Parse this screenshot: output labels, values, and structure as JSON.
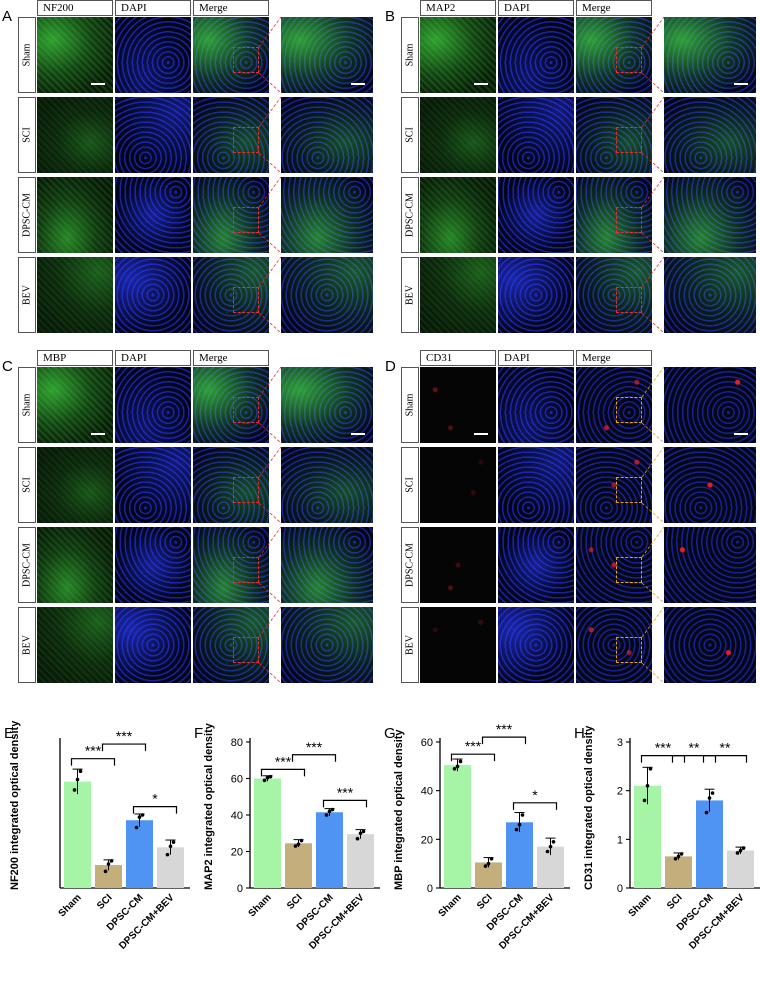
{
  "panels": [
    {
      "letter": "A",
      "channels": [
        "NF200",
        "DAPI",
        "Merge"
      ],
      "rows": [
        "Sham",
        "SCI",
        "DPSC-CM",
        "BEV"
      ],
      "stain": "green"
    },
    {
      "letter": "B",
      "channels": [
        "MAP2",
        "DAPI",
        "Merge"
      ],
      "rows": [
        "Sham",
        "SCI",
        "DPSC-CM",
        "BEV"
      ],
      "stain": "green"
    },
    {
      "letter": "C",
      "channels": [
        "MBP",
        "DAPI",
        "Merge"
      ],
      "rows": [
        "Sham",
        "SCI",
        "DPSC-CM",
        "BEV"
      ],
      "stain": "green"
    },
    {
      "letter": "D",
      "channels": [
        "CD31",
        "DAPI",
        "Merge"
      ],
      "rows": [
        "Sham",
        "SCI",
        "DPSC-CM",
        "BEV"
      ],
      "stain": "red"
    }
  ],
  "colors": {
    "sham": "#a6f5a6",
    "sci": "#c4ae7b",
    "dpsc_cm": "#4f94f3",
    "dpsc_cm_bev": "#d7d7d7",
    "green_stain": "#3fd13f",
    "red_stain": "#ff2020",
    "dapi": "#2a3cff",
    "box_red": "#e03030",
    "box_yellow": "#e0a020"
  },
  "chart_data": [
    {
      "letter": "E",
      "type": "bar",
      "categories": [
        "Sham",
        "SCI",
        "DPSC-CM",
        "DPSC-CM+BEV"
      ],
      "values": [
        51,
        11,
        32.5,
        19.5
      ],
      "errors": [
        6,
        2.5,
        3,
        3.5
      ],
      "points": [
        [
          47,
          52,
          56
        ],
        [
          8,
          11.5,
          13
        ],
        [
          29,
          34,
          35
        ],
        [
          16,
          20,
          22
        ]
      ],
      "ylabel": "NF200  integrated optical density",
      "ylim": [
        0,
        70
      ],
      "yticks": [],
      "axis_visible": true,
      "sig": [
        {
          "from": 0,
          "to": 1,
          "label": "***",
          "level": 62
        },
        {
          "from": 1,
          "to": 2,
          "label": "***",
          "level": 69
        },
        {
          "from": 2,
          "to": 3,
          "label": "*",
          "level": 39
        }
      ]
    },
    {
      "letter": "F",
      "type": "bar",
      "categories": [
        "Sham",
        "SCI",
        "DPSC-CM",
        "DPSC-CM+BEV"
      ],
      "values": [
        60,
        24.5,
        41.5,
        29.5
      ],
      "errors": [
        1.5,
        2,
        2,
        2.5
      ],
      "points": [
        [
          59,
          60.5,
          61
        ],
        [
          23,
          24,
          26
        ],
        [
          40,
          42,
          43
        ],
        [
          27,
          30,
          31
        ]
      ],
      "ylabel": "MAP2 integrated optical density",
      "ylim": [
        0,
        80
      ],
      "yticks": [
        0,
        20,
        40,
        60,
        80
      ],
      "axis_visible": true,
      "sig": [
        {
          "from": 0,
          "to": 1,
          "label": "***",
          "level": 65
        },
        {
          "from": 1,
          "to": 2,
          "label": "***",
          "level": 73
        },
        {
          "from": 2,
          "to": 3,
          "label": "***",
          "level": 48
        }
      ]
    },
    {
      "letter": "G",
      "type": "bar",
      "categories": [
        "Sham",
        "SCI",
        "DPSC-CM",
        "DPSC-CM+BEV"
      ],
      "values": [
        50.5,
        10.5,
        27,
        17
      ],
      "errors": [
        2.5,
        2,
        4,
        3.5
      ],
      "points": [
        [
          49,
          50,
          52
        ],
        [
          9,
          10,
          12
        ],
        [
          24,
          26,
          30
        ],
        [
          15,
          17,
          19
        ]
      ],
      "ylabel": "MBP integrated optical density",
      "ylim": [
        0,
        60
      ],
      "yticks": [
        0,
        20,
        40,
        60
      ],
      "axis_visible": true,
      "sig": [
        {
          "from": 0,
          "to": 1,
          "label": "***",
          "level": 55
        },
        {
          "from": 1,
          "to": 2,
          "label": "***",
          "level": 62
        },
        {
          "from": 2,
          "to": 3,
          "label": "*",
          "level": 35
        }
      ]
    },
    {
      "letter": "H",
      "type": "bar",
      "categories": [
        "Sham",
        "SCI",
        "DPSC-CM",
        "DPSC-CM+BEV"
      ],
      "values": [
        2.1,
        0.65,
        1.8,
        0.77
      ],
      "errors": [
        0.38,
        0.07,
        0.23,
        0.07
      ],
      "points": [
        [
          1.8,
          2.1,
          2.45
        ],
        [
          0.6,
          0.65,
          0.7
        ],
        [
          1.55,
          1.85,
          1.95
        ],
        [
          0.72,
          0.77,
          0.82
        ]
      ],
      "ylabel": "CD31  integrated optical density",
      "ylim": [
        0,
        3
      ],
      "yticks": [
        0,
        1,
        2,
        3
      ],
      "axis_visible": true,
      "sig": [
        {
          "from": 0,
          "to": 1,
          "label": "***",
          "level": 2.72
        },
        {
          "from": 1,
          "to": 2,
          "label": "**",
          "level": 2.72
        },
        {
          "from": 2,
          "to": 3,
          "label": "**",
          "level": 2.72
        }
      ]
    }
  ]
}
